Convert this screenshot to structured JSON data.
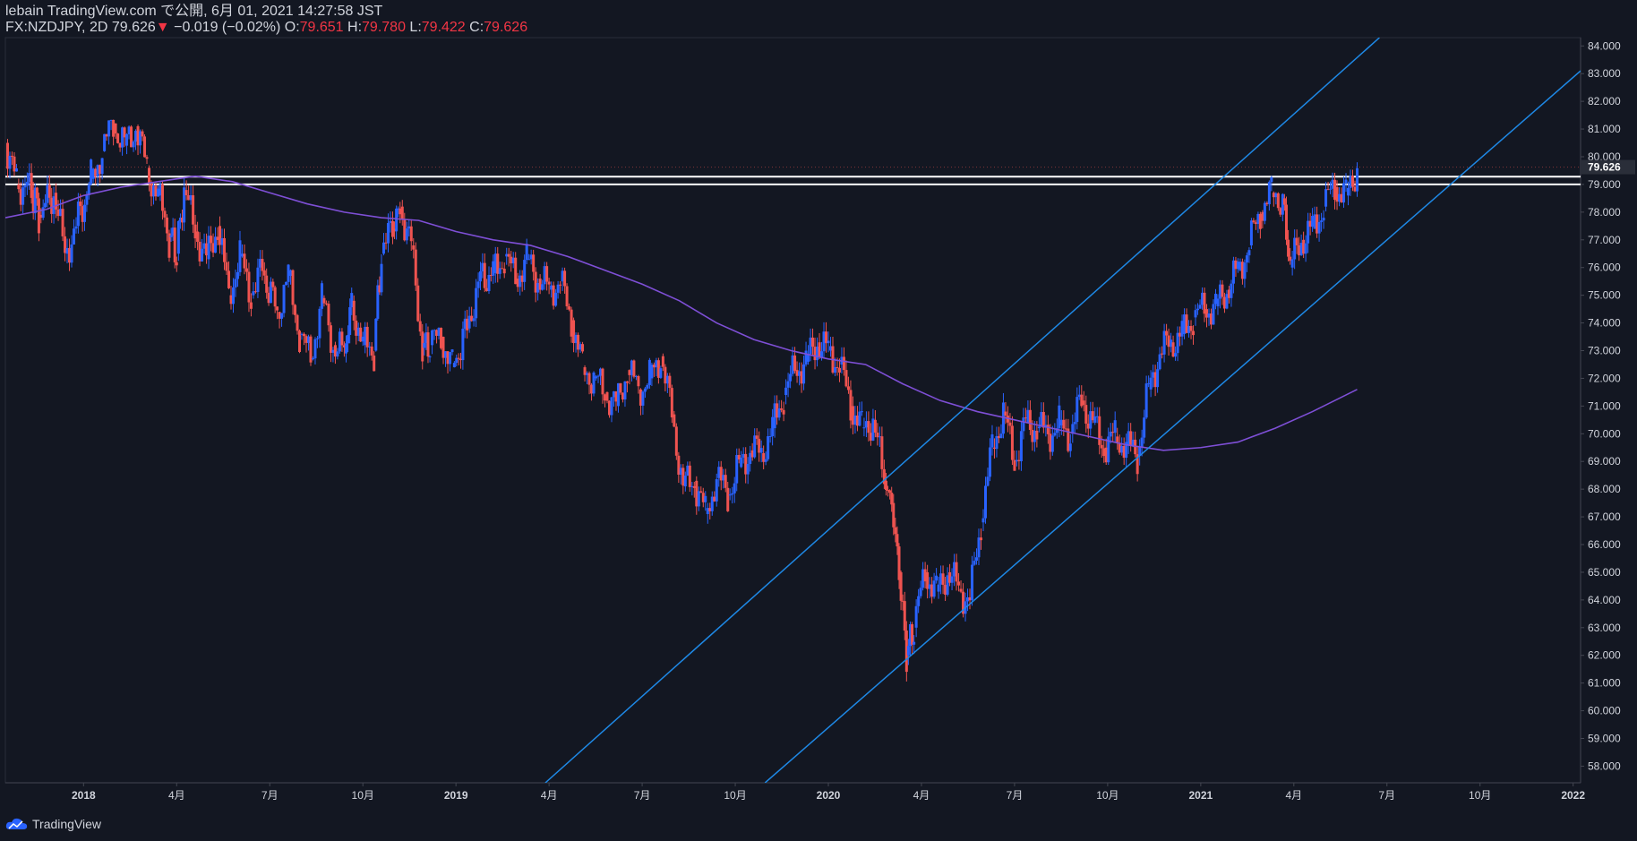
{
  "header": {
    "line1": "lebain TradingView.com で公開, 6月 01, 2021 14:27:58 JST",
    "symbol": "FX:NZDJPY, 2D",
    "last": "79.626",
    "arrow": "▼",
    "change": "−0.019 (−0.02%)",
    "o_label": "O:",
    "o_value": "79.651",
    "h_label": "H:",
    "h_value": "79.780",
    "l_label": "L:",
    "l_value": "79.422",
    "c_label": "C:",
    "c_value": "79.626"
  },
  "footer": {
    "brand": "TradingView"
  },
  "colors": {
    "background": "#131722",
    "up": "#2962ff",
    "down": "#ef5350",
    "ma": "#7e4fd6",
    "channel": "#1e88e5",
    "level": "#ffffff",
    "grid": "#1e2230",
    "text": "#d1d4dc"
  },
  "chart_data": {
    "type": "candlestick",
    "symbol": "FX:NZDJPY",
    "interval": "2D",
    "y_ticks": [
      "84.000",
      "83.000",
      "82.000",
      "81.000",
      "80.000",
      "79.000",
      "78.000",
      "77.000",
      "76.000",
      "75.000",
      "74.000",
      "73.000",
      "72.000",
      "71.000",
      "70.000",
      "69.000",
      "68.000",
      "67.000",
      "66.000",
      "65.000",
      "64.000",
      "63.000",
      "62.000",
      "61.000",
      "60.000",
      "59.000",
      "58.000"
    ],
    "ylim": [
      57.4,
      84.3
    ],
    "x_tick_labels": [
      {
        "label": "2018",
        "t": 2018.0,
        "bold": true
      },
      {
        "label": "4月",
        "t": 2018.25
      },
      {
        "label": "7月",
        "t": 2018.5
      },
      {
        "label": "10月",
        "t": 2018.75
      },
      {
        "label": "2019",
        "t": 2019.0,
        "bold": true
      },
      {
        "label": "4月",
        "t": 2019.25
      },
      {
        "label": "7月",
        "t": 2019.5
      },
      {
        "label": "10月",
        "t": 2019.75
      },
      {
        "label": "2020",
        "t": 2020.0,
        "bold": true
      },
      {
        "label": "4月",
        "t": 2020.25
      },
      {
        "label": "7月",
        "t": 2020.5
      },
      {
        "label": "10月",
        "t": 2020.75
      },
      {
        "label": "2021",
        "t": 2021.0,
        "bold": true
      },
      {
        "label": "4月",
        "t": 2021.25
      },
      {
        "label": "7月",
        "t": 2021.5
      },
      {
        "label": "10月",
        "t": 2021.75
      },
      {
        "label": "2022",
        "t": 2022.0,
        "bold": true
      }
    ],
    "x_range": [
      2017.79,
      2022.02
    ],
    "last_price": "79.626",
    "price_path": [
      [
        2017.79,
        80.5
      ],
      [
        2017.82,
        79.0
      ],
      [
        2017.86,
        78.8
      ],
      [
        2017.88,
        77.9
      ],
      [
        2017.92,
        78.7
      ],
      [
        2017.95,
        76.5
      ],
      [
        2017.98,
        77.5
      ],
      [
        2018.02,
        79.2
      ],
      [
        2018.05,
        80.2
      ],
      [
        2018.08,
        81.2
      ],
      [
        2018.11,
        80.4
      ],
      [
        2018.14,
        81.1
      ],
      [
        2018.17,
        79.6
      ],
      [
        2018.2,
        78.6
      ],
      [
        2018.23,
        77.1
      ],
      [
        2018.25,
        76.5
      ],
      [
        2018.27,
        78.8
      ],
      [
        2018.3,
        77.3
      ],
      [
        2018.33,
        76.3
      ],
      [
        2018.36,
        77.5
      ],
      [
        2018.39,
        75.0
      ],
      [
        2018.42,
        76.4
      ],
      [
        2018.45,
        75.0
      ],
      [
        2018.48,
        75.9
      ],
      [
        2018.52,
        74.4
      ],
      [
        2018.55,
        75.7
      ],
      [
        2018.58,
        73.6
      ],
      [
        2018.61,
        72.7
      ],
      [
        2018.64,
        74.9
      ],
      [
        2018.67,
        73.2
      ],
      [
        2018.7,
        72.9
      ],
      [
        2018.72,
        74.8
      ],
      [
        2018.75,
        73.2
      ],
      [
        2018.78,
        73.0
      ],
      [
        2018.8,
        76.5
      ],
      [
        2018.83,
        77.4
      ],
      [
        2018.85,
        78.2
      ],
      [
        2018.88,
        76.8
      ],
      [
        2018.91,
        73.1
      ],
      [
        2018.93,
        73.2
      ],
      [
        2018.96,
        73.5
      ],
      [
        2018.99,
        72.4
      ],
      [
        2019.03,
        73.8
      ],
      [
        2019.06,
        75.5
      ],
      [
        2019.1,
        75.8
      ],
      [
        2019.13,
        76.4
      ],
      [
        2019.16,
        75.6
      ],
      [
        2019.19,
        76.3
      ],
      [
        2019.22,
        75.6
      ],
      [
        2019.25,
        75.2
      ],
      [
        2019.28,
        75.5
      ],
      [
        2019.31,
        74.1
      ],
      [
        2019.34,
        72.4
      ],
      [
        2019.37,
        72.0
      ],
      [
        2019.4,
        71.5
      ],
      [
        2019.43,
        71.0
      ],
      [
        2019.46,
        72.3
      ],
      [
        2019.49,
        71.6
      ],
      [
        2019.52,
        72.0
      ],
      [
        2019.55,
        72.8
      ],
      [
        2019.58,
        70.7
      ],
      [
        2019.61,
        68.1
      ],
      [
        2019.64,
        68.3
      ],
      [
        2019.67,
        67.1
      ],
      [
        2019.7,
        68.4
      ],
      [
        2019.73,
        67.8
      ],
      [
        2019.76,
        68.8
      ],
      [
        2019.79,
        69.4
      ],
      [
        2019.82,
        69.3
      ],
      [
        2019.85,
        70.2
      ],
      [
        2019.88,
        71.4
      ],
      [
        2019.91,
        72.3
      ],
      [
        2019.94,
        72.6
      ],
      [
        2019.97,
        73.3
      ],
      [
        2020.0,
        73.0
      ],
      [
        2020.03,
        72.5
      ],
      [
        2020.06,
        71.0
      ],
      [
        2020.09,
        70.2
      ],
      [
        2020.12,
        70.5
      ],
      [
        2020.15,
        68.3
      ],
      [
        2020.17,
        67.5
      ],
      [
        2020.19,
        65.0
      ],
      [
        2020.21,
        62.0
      ],
      [
        2020.23,
        63.0
      ],
      [
        2020.26,
        65.0
      ],
      [
        2020.29,
        64.3
      ],
      [
        2020.32,
        65.0
      ],
      [
        2020.35,
        64.4
      ],
      [
        2020.38,
        64.0
      ],
      [
        2020.41,
        66.8
      ],
      [
        2020.44,
        69.5
      ],
      [
        2020.47,
        70.8
      ],
      [
        2020.5,
        69.0
      ],
      [
        2020.53,
        70.4
      ],
      [
        2020.56,
        70.2
      ],
      [
        2020.59,
        70.0
      ],
      [
        2020.62,
        70.3
      ],
      [
        2020.65,
        70.0
      ],
      [
        2020.68,
        71.2
      ],
      [
        2020.71,
        70.4
      ],
      [
        2020.74,
        69.5
      ],
      [
        2020.77,
        69.9
      ],
      [
        2020.8,
        69.6
      ],
      [
        2020.83,
        69.2
      ],
      [
        2020.86,
        71.6
      ],
      [
        2020.89,
        72.9
      ],
      [
        2020.92,
        73.3
      ],
      [
        2020.95,
        73.6
      ],
      [
        2020.98,
        74.2
      ],
      [
        2021.01,
        74.5
      ],
      [
        2021.04,
        74.6
      ],
      [
        2021.07,
        75.2
      ],
      [
        2021.1,
        75.9
      ],
      [
        2021.13,
        76.8
      ],
      [
        2021.16,
        78.0
      ],
      [
        2021.19,
        78.7
      ],
      [
        2021.22,
        78.5
      ],
      [
        2021.24,
        76.0
      ],
      [
        2021.27,
        77.0
      ],
      [
        2021.3,
        77.4
      ],
      [
        2021.33,
        78.2
      ],
      [
        2021.36,
        78.9
      ],
      [
        2021.39,
        78.6
      ],
      [
        2021.42,
        79.626
      ]
    ],
    "moving_average": [
      [
        2017.79,
        77.8
      ],
      [
        2017.9,
        78.1
      ],
      [
        2018.0,
        78.6
      ],
      [
        2018.1,
        78.9
      ],
      [
        2018.2,
        79.1
      ],
      [
        2018.3,
        79.3
      ],
      [
        2018.4,
        79.1
      ],
      [
        2018.5,
        78.7
      ],
      [
        2018.6,
        78.3
      ],
      [
        2018.7,
        78.0
      ],
      [
        2018.8,
        77.8
      ],
      [
        2018.9,
        77.7
      ],
      [
        2019.0,
        77.3
      ],
      [
        2019.1,
        77.0
      ],
      [
        2019.2,
        76.8
      ],
      [
        2019.3,
        76.4
      ],
      [
        2019.4,
        75.9
      ],
      [
        2019.5,
        75.4
      ],
      [
        2019.6,
        74.8
      ],
      [
        2019.7,
        74.0
      ],
      [
        2019.8,
        73.4
      ],
      [
        2019.9,
        73.0
      ],
      [
        2020.0,
        72.7
      ],
      [
        2020.1,
        72.5
      ],
      [
        2020.2,
        71.8
      ],
      [
        2020.3,
        71.2
      ],
      [
        2020.4,
        70.8
      ],
      [
        2020.5,
        70.5
      ],
      [
        2020.6,
        70.2
      ],
      [
        2020.7,
        69.9
      ],
      [
        2020.8,
        69.6
      ],
      [
        2020.9,
        69.4
      ],
      [
        2021.0,
        69.5
      ],
      [
        2021.1,
        69.7
      ],
      [
        2021.2,
        70.2
      ],
      [
        2021.3,
        70.8
      ],
      [
        2021.42,
        71.6
      ]
    ],
    "horizontal_levels": [
      79.28,
      79.0
    ],
    "channel_lines": [
      {
        "name": "channel-upper",
        "t1": 2019.24,
        "p1": 57.4,
        "t2": 2021.48,
        "p2": 84.3
      },
      {
        "name": "channel-lower",
        "t1": 2019.83,
        "p1": 57.4,
        "t2": 2022.02,
        "p2": 83.1
      }
    ]
  }
}
